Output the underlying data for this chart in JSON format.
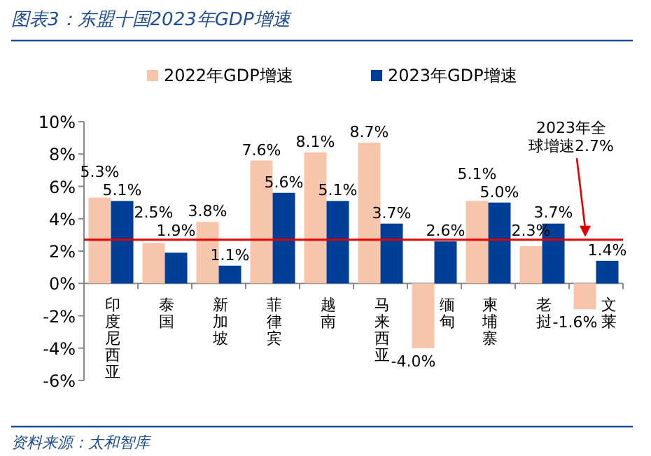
{
  "chart_data": {
    "type": "bar",
    "title": "图表3：东盟十国2023年GDP增速",
    "categories": [
      "印度尼西亚",
      "泰国",
      "新加坡",
      "菲律宾",
      "越南",
      "马来西亚",
      "缅甸",
      "柬埔寨",
      "老挝",
      "文莱"
    ],
    "series": [
      {
        "name": "2022年GDP增速",
        "color": "#f7c5ab",
        "values": [
          5.3,
          2.5,
          3.8,
          7.6,
          8.1,
          8.7,
          -4.0,
          5.1,
          2.3,
          -1.6
        ],
        "value_labels": [
          "5.3%",
          "2.5%",
          "3.8%",
          "7.6%",
          "8.1%",
          "8.7%",
          "-4.0%",
          "5.1%",
          "2.3%",
          "-1.6%"
        ]
      },
      {
        "name": "2023年GDP增速",
        "color": "#003f98",
        "values": [
          5.1,
          1.9,
          1.1,
          5.6,
          5.1,
          3.7,
          2.6,
          5.0,
          3.7,
          1.4
        ],
        "value_labels": [
          "5.1%",
          "1.9%",
          "1.1%",
          "5.6%",
          "5.1%",
          "3.7%",
          "2.6%",
          "5.0%",
          "3.7%",
          "1.4%"
        ]
      }
    ],
    "ylim": [
      -6,
      10
    ],
    "yticks": [
      {
        "value": -6,
        "label": "-6%"
      },
      {
        "value": -4,
        "label": "-4%"
      },
      {
        "value": -2,
        "label": "-2%"
      },
      {
        "value": 0,
        "label": "0%"
      },
      {
        "value": 2,
        "label": "2%"
      },
      {
        "value": 4,
        "label": "4%"
      },
      {
        "value": 6,
        "label": "6%"
      },
      {
        "value": 8,
        "label": "8%"
      },
      {
        "value": 10,
        "label": "10%"
      }
    ],
    "ref_lines": [
      {
        "axis": "y",
        "value": 2.7,
        "label": "2023年全球增速2.7%",
        "color": "#e00000"
      }
    ],
    "legend": "top",
    "grid": false,
    "annotations": [
      "资料来源：太和智库"
    ]
  }
}
